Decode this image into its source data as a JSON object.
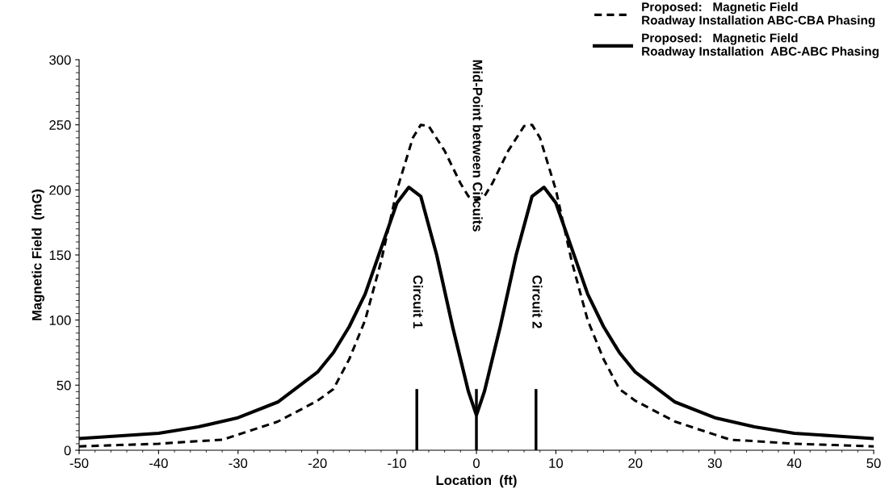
{
  "chart_data": {
    "type": "line",
    "xlabel": "Location  (ft)",
    "ylabel": "Magnetic Field  (mG)",
    "xlim": [
      -50,
      50
    ],
    "xticks": [
      -50,
      -40,
      -30,
      -20,
      -10,
      0,
      10,
      20,
      30,
      40,
      50
    ],
    "ylim": [
      0,
      300
    ],
    "yticks": [
      0,
      50,
      100,
      150,
      200,
      250,
      300
    ],
    "grid": false,
    "legend": "top right",
    "marker": "none",
    "series": [
      {
        "name": "Proposed:   Magnetic Field\nRoadway Installation ABC-CBA Phasing",
        "color": "#000000",
        "line_style": "dashed",
        "x": [
          -50,
          -45,
          -40,
          -35,
          -32,
          -30,
          -25,
          -20,
          -18,
          -16,
          -14,
          -12,
          -10,
          -8,
          -7,
          -6,
          -4,
          -2,
          -1,
          0,
          1,
          2,
          4,
          6,
          7,
          8,
          10,
          12,
          14,
          16,
          18,
          20,
          25,
          30,
          32,
          35,
          40,
          45,
          50
        ],
        "values": [
          3,
          4,
          5,
          7,
          8,
          12,
          22,
          38,
          47,
          70,
          100,
          145,
          200,
          240,
          250,
          249,
          230,
          205,
          195,
          192,
          195,
          205,
          230,
          249,
          250,
          240,
          200,
          145,
          100,
          70,
          47,
          38,
          22,
          12,
          8,
          7,
          5,
          4,
          3
        ]
      },
      {
        "name": "Proposed:   Magnetic Field\nRoadway Installation  ABC-ABC Phasing",
        "color": "#000000",
        "line_style": "solid",
        "x": [
          -50,
          -45,
          -40,
          -35,
          -30,
          -25,
          -20,
          -18,
          -16,
          -14,
          -12,
          -10,
          -8.5,
          -7,
          -5,
          -3,
          -1,
          0,
          1,
          3,
          5,
          7,
          8.5,
          10,
          12,
          14,
          16,
          18,
          20,
          25,
          30,
          35,
          40,
          45,
          50
        ],
        "values": [
          9,
          11,
          13,
          18,
          25,
          37,
          60,
          75,
          95,
          120,
          155,
          190,
          202,
          195,
          150,
          95,
          45,
          27,
          45,
          95,
          150,
          195,
          202,
          190,
          155,
          120,
          95,
          75,
          60,
          37,
          25,
          18,
          13,
          11,
          9
        ]
      },
      {
        "type": "bar",
        "color": "#000000",
        "x": [
          -7.5,
          0,
          7.5
        ],
        "values": [
          47,
          47,
          47
        ]
      }
    ],
    "annotations": [
      "Circuit 1",
      "Mid-Point between Circuits",
      "Circuit 2"
    ]
  }
}
